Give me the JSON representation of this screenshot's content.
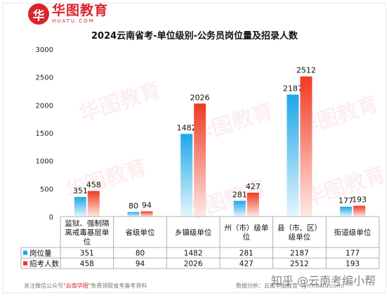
{
  "logo": {
    "brand_cn": "华图教育",
    "brand_en": "HUATU.COM"
  },
  "watermarks": [
    "华图教育",
    "华图教育",
    "华图教育",
    "华图教育",
    "华图教育",
    "华图教育"
  ],
  "chart_data": {
    "type": "bar",
    "title": "2024云南省考-单位级别-公务员岗位量及招录人数",
    "categories": [
      "监狱、强制隔离戒毒基层单位",
      "省级单位",
      "乡镇级单位",
      "州（市）级单位",
      "县（市、区）级单位",
      "街道级单位"
    ],
    "series": [
      {
        "name": "岗位量",
        "values": [
          351,
          80,
          1482,
          281,
          2187,
          177
        ]
      },
      {
        "name": "招考人数",
        "values": [
          458,
          94,
          2026,
          427,
          2512,
          193
        ]
      }
    ],
    "ylim": [
      0,
      3000
    ],
    "yticks": [
      0,
      500,
      1000,
      1500,
      2000,
      2500,
      3000
    ],
    "grid": false,
    "legend": "data-table",
    "colors": {
      "series1_top": "#1ea7e8",
      "series1_bottom": "#e6f6fd",
      "series2_top": "#f03a22",
      "series2_bottom": "#fde9e5"
    }
  },
  "footer": {
    "note_prefix": "关注微信公众号",
    "note_highlight": "\"云南华图\"",
    "note_suffix": "免费领取省考备考资料",
    "source": "数据分析：云南华图教育（yn.huatu.com）",
    "mark": "知乎 @云南考编小帮"
  }
}
